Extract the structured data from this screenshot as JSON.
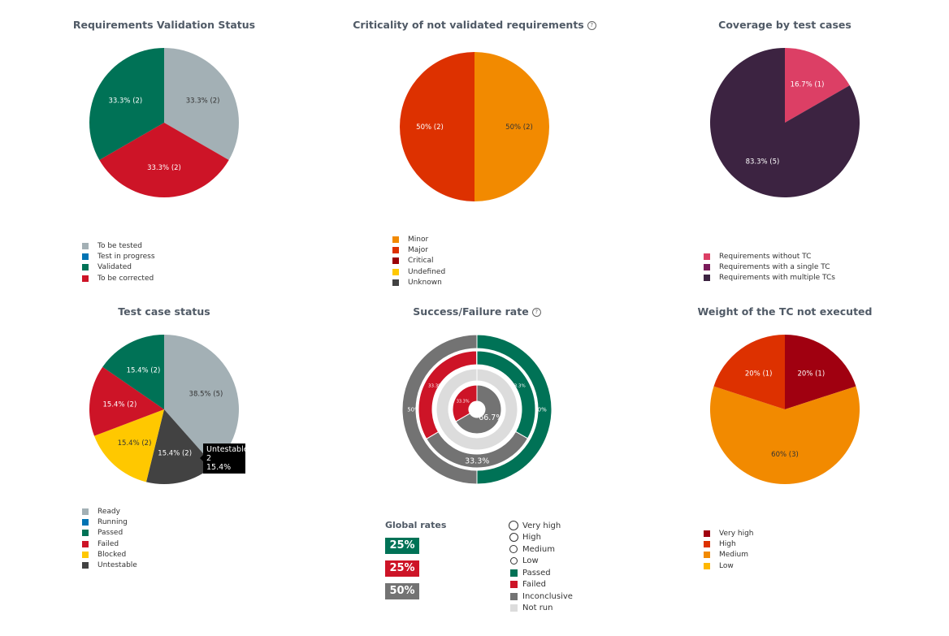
{
  "chart_data": [
    {
      "type": "pie",
      "title": "Requirements Validation Status",
      "help": false,
      "slices": [
        {
          "label": "To be tested",
          "value": 33.3,
          "count": 2,
          "color": "#a3b0b5",
          "text": "33.3% (2)",
          "textColor": "#333"
        },
        {
          "label": "To be corrected",
          "value": 33.3,
          "count": 2,
          "color": "#cd1427",
          "text": "33.3% (2)",
          "textColor": "#fff"
        },
        {
          "label": "Validated",
          "value": 33.3,
          "count": 2,
          "color": "#007256",
          "text": "33.3% (2)",
          "textColor": "#fff"
        }
      ],
      "legend": [
        {
          "label": "To be tested",
          "color": "#a3b0b5"
        },
        {
          "label": "Test in progress",
          "color": "#0073b3"
        },
        {
          "label": "Validated",
          "color": "#007256"
        },
        {
          "label": "To be corrected",
          "color": "#cd1427"
        }
      ]
    },
    {
      "type": "pie",
      "title": "Criticality of not validated requirements",
      "help": true,
      "slices": [
        {
          "label": "Minor",
          "value": 50,
          "count": 2,
          "color": "#f28a00",
          "text": "50% (2)",
          "textColor": "#333"
        },
        {
          "label": "Major",
          "value": 50,
          "count": 2,
          "color": "#dd3100",
          "text": "50% (2)",
          "textColor": "#fff"
        }
      ],
      "legend": [
        {
          "label": "Minor",
          "color": "#f28a00"
        },
        {
          "label": "Major",
          "color": "#dd3100"
        },
        {
          "label": "Critical",
          "color": "#9a0007"
        },
        {
          "label": "Undefined",
          "color": "#ffc800"
        },
        {
          "label": "Unknown",
          "color": "#424242"
        }
      ]
    },
    {
      "type": "pie",
      "title": "Coverage by test cases",
      "help": false,
      "slices": [
        {
          "label": "Requirements without TC",
          "value": 16.7,
          "count": 1,
          "color": "#dc3f65",
          "text": "16.7% (1)",
          "textColor": "#fff"
        },
        {
          "label": "Requirements with multiple TCs",
          "value": 83.3,
          "count": 5,
          "color": "#3c2341",
          "text": "83.3% (5)",
          "textColor": "#fff"
        }
      ],
      "legend": [
        {
          "label": "Requirements without TC",
          "color": "#dc3f65"
        },
        {
          "label": "Requirements with a single TC",
          "color": "#7a1a5a"
        },
        {
          "label": "Requirements with multiple TCs",
          "color": "#3c2341"
        }
      ]
    },
    {
      "type": "pie",
      "title": "Test case status",
      "help": false,
      "slices": [
        {
          "label": "Ready",
          "value": 38.5,
          "count": 5,
          "color": "#a3b0b5",
          "text": "38.5% (5)",
          "textColor": "#333"
        },
        {
          "label": "Untestable",
          "value": 15.4,
          "count": 2,
          "color": "#424242",
          "text": "15.4% (2)",
          "textColor": "#fff"
        },
        {
          "label": "Blocked",
          "value": 15.4,
          "count": 2,
          "color": "#ffc800",
          "text": "15.4% (2)",
          "textColor": "#333"
        },
        {
          "label": "Failed",
          "value": 15.4,
          "count": 2,
          "color": "#cd1427",
          "text": "15.4% (2)",
          "textColor": "#fff"
        },
        {
          "label": "Passed",
          "value": 15.4,
          "count": 2,
          "color": "#007256",
          "text": "15.4% (2)",
          "textColor": "#fff"
        }
      ],
      "legend": [
        {
          "label": "Ready",
          "color": "#a3b0b5"
        },
        {
          "label": "Running",
          "color": "#0073b3"
        },
        {
          "label": "Passed",
          "color": "#007256"
        },
        {
          "label": "Failed",
          "color": "#cd1427"
        },
        {
          "label": "Blocked",
          "color": "#ffc800"
        },
        {
          "label": "Untestable",
          "color": "#424242"
        }
      ],
      "tooltip": {
        "label": "Untestable",
        "count": "2",
        "percent": "15.4%"
      }
    },
    {
      "type": "donut",
      "title": "Success/Failure rate",
      "help": true,
      "rings": [
        {
          "name": "Very high",
          "segments": [
            {
              "label": "Passed",
              "value": 50,
              "color": "#007256",
              "text": "50%"
            },
            {
              "label": "Inconclusive",
              "value": 50,
              "color": "#737373",
              "text": "50%"
            }
          ]
        },
        {
          "name": "High",
          "segments": [
            {
              "label": "Passed",
              "value": 33.3,
              "color": "#007256",
              "text": "33.3%"
            },
            {
              "label": "Inconclusive",
              "value": 33.3,
              "color": "#737373",
              "text": "33.3%"
            },
            {
              "label": "Failed",
              "value": 33.3,
              "color": "#cd1427",
              "text": "33.3%"
            }
          ]
        },
        {
          "name": "Medium",
          "segments": [
            {
              "label": "Not run",
              "value": 100,
              "color": "#dcdcdc",
              "text": ""
            }
          ]
        },
        {
          "name": "Low",
          "segments": [
            {
              "label": "Inconclusive",
              "value": 66.7,
              "color": "#737373",
              "text": "66.7%"
            },
            {
              "label": "Failed",
              "value": 33.3,
              "color": "#cd1427",
              "text": "33.3%"
            }
          ]
        }
      ],
      "global_rates": {
        "title": "Global rates",
        "rates": [
          {
            "value": "25%",
            "color": "#007256"
          },
          {
            "value": "25%",
            "color": "#cd1427"
          },
          {
            "value": "50%",
            "color": "#737373"
          }
        ]
      },
      "legend": [
        {
          "label": "Very high",
          "marker": "circle"
        },
        {
          "label": "High",
          "marker": "circle"
        },
        {
          "label": "Medium",
          "marker": "circle"
        },
        {
          "label": "Low",
          "marker": "circle"
        },
        {
          "label": "Passed",
          "color": "#007256"
        },
        {
          "label": "Failed",
          "color": "#cd1427"
        },
        {
          "label": "Inconclusive",
          "color": "#737373"
        },
        {
          "label": "Not run",
          "color": "#dcdcdc"
        }
      ]
    },
    {
      "type": "pie",
      "title": "Weight of the TC not executed",
      "help": false,
      "slices": [
        {
          "label": "Very high",
          "value": 20,
          "count": 1,
          "color": "#a00010",
          "text": "20% (1)",
          "textColor": "#fff"
        },
        {
          "label": "Medium",
          "value": 60,
          "count": 3,
          "color": "#f28a00",
          "text": "60% (3)",
          "textColor": "#333"
        },
        {
          "label": "High",
          "value": 20,
          "count": 1,
          "color": "#dd3100",
          "text": "20% (1)",
          "textColor": "#fff"
        }
      ],
      "legend": [
        {
          "label": "Very high",
          "color": "#a00010"
        },
        {
          "label": "High",
          "color": "#dd3100"
        },
        {
          "label": "Medium",
          "color": "#f28a00"
        },
        {
          "label": "Low",
          "color": "#ffb800"
        }
      ]
    }
  ]
}
